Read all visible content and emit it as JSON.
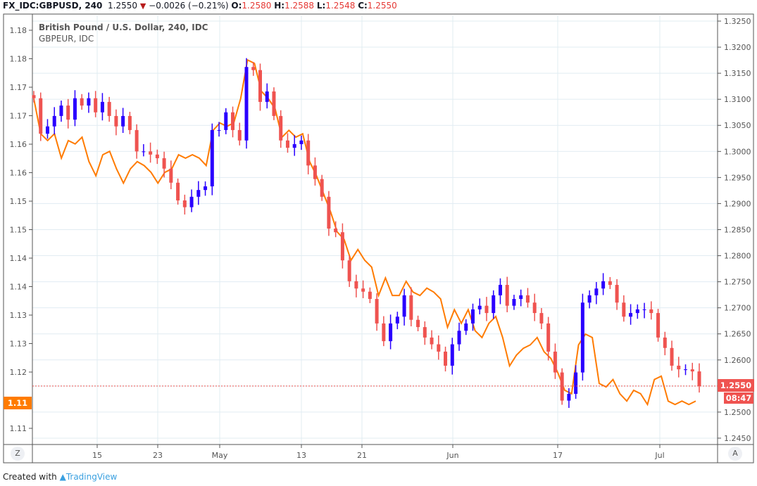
{
  "header": {
    "symbol": "FX_IDC:GBPUSD, 240",
    "last": "1.2550",
    "change": "−0.0026 (−0.21%)",
    "o_label": "O:",
    "o": "1.2580",
    "h_label": "H:",
    "h": "1.2588",
    "l_label": "L:",
    "l": "1.2548",
    "c_label": "C:",
    "c": "1.2550"
  },
  "legend": {
    "main": "British Pound / U.S. Dollar, 240, IDC",
    "compare": "GBPEUR, IDC"
  },
  "badges": {
    "price": "1.2550",
    "countdown": "08:47",
    "compare_price": "1.11"
  },
  "buttons": {
    "left_scale": "Z",
    "right_scale": "A"
  },
  "footer": {
    "created": "Created with",
    "brand": "TradingView"
  },
  "colors": {
    "up": "#2a00ff",
    "down": "#ef5350",
    "compare": "#ff7b00",
    "grid": "#e1ecf2"
  },
  "chart_data": {
    "type": "candlestick+line",
    "x_ticks": [
      "15",
      "23",
      "May",
      "13",
      "21",
      "Jun",
      "17",
      "Jul"
    ],
    "right_axis": {
      "ticks": [
        "1.3250",
        "1.3200",
        "1.3150",
        "1.3100",
        "1.3050",
        "1.3000",
        "1.2950",
        "1.2900",
        "1.2850",
        "1.2800",
        "1.2750",
        "1.2700",
        "1.2650",
        "1.2600",
        "1.2550",
        "1.2500",
        "1.2450"
      ],
      "range": [
        1.2437,
        1.3258
      ]
    },
    "left_axis": {
      "ticks": [
        "1.18",
        "1.18",
        "1.17",
        "1.17",
        "1.16",
        "1.16",
        "1.15",
        "1.15",
        "1.14",
        "1.14",
        "1.13",
        "1.13",
        "1.12",
        "1.11"
      ],
      "range": [
        1.1097,
        1.1804
      ]
    },
    "series": [
      {
        "name": "British Pound / U.S. Dollar, 240, IDC",
        "axis": "right",
        "type": "candlestick",
        "closes": [
          1.3102,
          1.3034,
          1.3048,
          1.3068,
          1.3088,
          1.3061,
          1.3102,
          1.3088,
          1.3102,
          1.3075,
          1.3095,
          1.3068,
          1.3048,
          1.3068,
          1.3041,
          1.3,
          1.3,
          1.2994,
          1.2987,
          1.2967,
          1.294,
          1.2906,
          1.2893,
          1.2913,
          1.2926,
          1.2933,
          1.3041,
          1.3041,
          1.3075,
          1.3041,
          1.3021,
          1.3162,
          1.3156,
          1.3095,
          1.3115,
          1.3068,
          1.3021,
          1.3007,
          1.3014,
          1.3021,
          1.2973,
          1.2947,
          1.2913,
          1.2852,
          1.2845,
          1.2791,
          1.2751,
          1.2737,
          1.2731,
          1.2717,
          1.267,
          1.2636,
          1.267,
          1.2683,
          1.2724,
          1.2677,
          1.2663,
          1.2643,
          1.263,
          1.2616,
          1.2589,
          1.263,
          1.2656,
          1.267,
          1.2697,
          1.2704,
          1.269,
          1.2724,
          1.2744,
          1.2704,
          1.2717,
          1.2724,
          1.271,
          1.269,
          1.267,
          1.2616,
          1.2576,
          1.2522,
          1.2535,
          1.2576,
          1.271,
          1.2724,
          1.2737,
          1.2751,
          1.2744,
          1.271,
          1.2683,
          1.269,
          1.2697,
          1.2697,
          1.269,
          1.2643,
          1.2623,
          1.2589,
          1.2582,
          1.2582,
          1.2578,
          1.255
        ]
      },
      {
        "name": "GBPEUR, IDC",
        "axis": "left",
        "type": "line",
        "values": [
          1.1681,
          1.1619,
          1.1607,
          1.1619,
          1.1576,
          1.1607,
          1.1601,
          1.1613,
          1.157,
          1.1545,
          1.1582,
          1.1588,
          1.1557,
          1.1532,
          1.1557,
          1.157,
          1.1563,
          1.1551,
          1.1532,
          1.1551,
          1.1557,
          1.1582,
          1.1576,
          1.1582,
          1.1576,
          1.1563,
          1.1625,
          1.1638,
          1.1632,
          1.1638,
          1.1681,
          1.1749,
          1.1743,
          1.1694,
          1.1681,
          1.1663,
          1.1613,
          1.1625,
          1.1613,
          1.1619,
          1.157,
          1.1545,
          1.1514,
          1.1483,
          1.1446,
          1.1433,
          1.1396,
          1.1415,
          1.1396,
          1.1384,
          1.1334,
          1.1365,
          1.1334,
          1.1334,
          1.1359,
          1.134,
          1.1334,
          1.1347,
          1.134,
          1.1328,
          1.1278,
          1.1309,
          1.1285,
          1.1309,
          1.1272,
          1.126,
          1.1285,
          1.1297,
          1.126,
          1.121,
          1.1229,
          1.1241,
          1.1247,
          1.126,
          1.1235,
          1.1223,
          1.1198,
          1.1167,
          1.1161,
          1.1247,
          1.1266,
          1.126,
          1.1179,
          1.1173,
          1.1186,
          1.1161,
          1.1148,
          1.1167,
          1.1161,
          1.1142,
          1.1186,
          1.1192,
          1.1148,
          1.1142,
          1.1148,
          1.1142,
          1.1148
        ]
      }
    ],
    "last_price_line": 1.255
  }
}
